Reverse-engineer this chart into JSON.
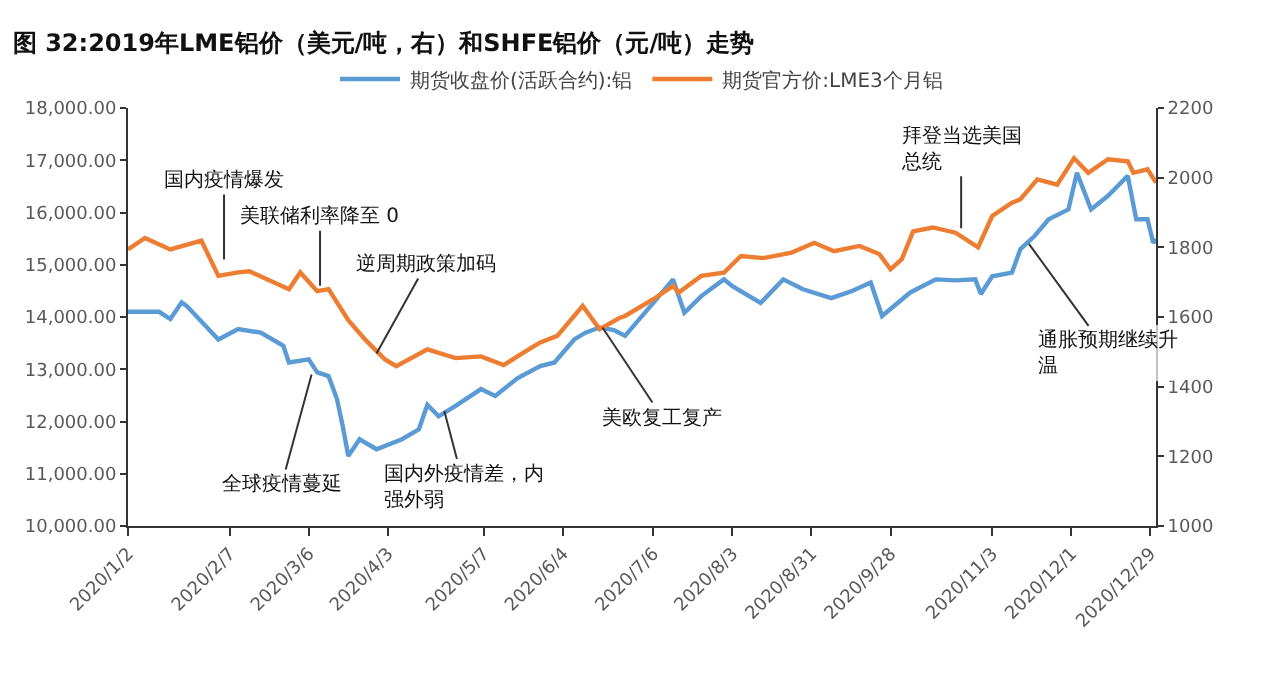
{
  "chart_data": {
    "type": "line",
    "title": "图 32:2019年LME铝价（美元/吨，右）和SHFE铝价（元/吨）走势",
    "series": [
      {
        "name": "期货收盘价(活跃合约):铝",
        "color": "#5b9bd5",
        "x": [
          "2020-01-02",
          "2020-01-13",
          "2020-01-17",
          "2020-01-21",
          "2020-01-23",
          "2020-02-03",
          "2020-02-10",
          "2020-02-18",
          "2020-02-26",
          "2020-02-28",
          "2020-03-06",
          "2020-03-09",
          "2020-03-13",
          "2020-03-16",
          "2020-03-18",
          "2020-03-20",
          "2020-03-24",
          "2020-03-30",
          "2020-04-08",
          "2020-04-14",
          "2020-04-17",
          "2020-04-21",
          "2020-04-27",
          "2020-05-06",
          "2020-05-11",
          "2020-05-19",
          "2020-05-27",
          "2020-06-01",
          "2020-06-08",
          "2020-06-12",
          "2020-06-17",
          "2020-06-22",
          "2020-06-26",
          "2020-07-06",
          "2020-07-13",
          "2020-07-17",
          "2020-07-23",
          "2020-07-31",
          "2020-08-03",
          "2020-08-13",
          "2020-08-21",
          "2020-08-28",
          "2020-09-07",
          "2020-09-14",
          "2020-09-21",
          "2020-09-25",
          "2020-10-05",
          "2020-10-14",
          "2020-10-21",
          "2020-10-28",
          "2020-10-30",
          "2020-11-03",
          "2020-11-10",
          "2020-11-13",
          "2020-11-18",
          "2020-11-23",
          "2020-11-30",
          "2020-12-03",
          "2020-12-08",
          "2020-12-14",
          "2020-12-21",
          "2020-12-24",
          "2020-12-28",
          "2020-12-30",
          "2020-12-31"
        ],
        "values": [
          14100,
          14100,
          13960,
          14280,
          14200,
          13570,
          13770,
          13700,
          13450,
          13130,
          13190,
          12940,
          12870,
          12430,
          11920,
          11340,
          11660,
          11470,
          11660,
          11850,
          12320,
          12100,
          12300,
          12620,
          12490,
          12830,
          13060,
          13130,
          13570,
          13700,
          13800,
          13750,
          13640,
          14270,
          14720,
          14080,
          14400,
          14720,
          14590,
          14270,
          14720,
          14530,
          14360,
          14490,
          14660,
          14020,
          14470,
          14720,
          14700,
          14720,
          14440,
          14780,
          14850,
          15300,
          15550,
          15870,
          16060,
          16760,
          16060,
          16320,
          16700,
          15870,
          15870,
          15420,
          15490
        ]
      },
      {
        "name": "期货官方价:LME3个月铝",
        "color": "#ed7d31",
        "axis": "y2",
        "x": [
          "2020-01-02",
          "2020-01-08",
          "2020-01-17",
          "2020-01-28",
          "2020-02-03",
          "2020-02-10",
          "2020-02-14",
          "2020-02-28",
          "2020-03-03",
          "2020-03-09",
          "2020-03-13",
          "2020-03-20",
          "2020-03-26",
          "2020-04-02",
          "2020-04-06",
          "2020-04-17",
          "2020-04-27",
          "2020-05-06",
          "2020-05-14",
          "2020-05-21",
          "2020-05-27",
          "2020-06-02",
          "2020-06-11",
          "2020-06-17",
          "2020-06-24",
          "2020-06-26",
          "2020-07-06",
          "2020-07-13",
          "2020-07-15",
          "2020-07-23",
          "2020-07-31",
          "2020-08-06",
          "2020-08-14",
          "2020-08-24",
          "2020-09-01",
          "2020-09-08",
          "2020-09-17",
          "2020-09-24",
          "2020-09-28",
          "2020-10-02",
          "2020-10-06",
          "2020-10-13",
          "2020-10-21",
          "2020-10-29",
          "2020-11-03",
          "2020-11-10",
          "2020-11-13",
          "2020-11-19",
          "2020-11-26",
          "2020-12-02",
          "2020-12-07",
          "2020-12-14",
          "2020-12-21",
          "2020-12-23",
          "2020-12-28",
          "2020-12-31"
        ],
        "values": [
          1794,
          1827,
          1794,
          1819,
          1718,
          1728,
          1731,
          1680,
          1728,
          1674,
          1680,
          1591,
          1535,
          1478,
          1459,
          1507,
          1482,
          1487,
          1462,
          1498,
          1527,
          1546,
          1632,
          1565,
          1597,
          1603,
          1651,
          1689,
          1670,
          1718,
          1727,
          1775,
          1769,
          1785,
          1813,
          1789,
          1804,
          1781,
          1737,
          1766,
          1846,
          1857,
          1842,
          1800,
          1890,
          1928,
          1938,
          1995,
          1980,
          2056,
          2014,
          2053,
          2047,
          2014,
          2024,
          1986
        ]
      }
    ],
    "xlim": [
      "2020-01-02",
      "2020-12-31"
    ],
    "xticks": [
      {
        "value": "2020-01-02",
        "label": "2020/1/2"
      },
      {
        "value": "2020-02-07",
        "label": "2020/2/7"
      },
      {
        "value": "2020-03-06",
        "label": "2020/3/6"
      },
      {
        "value": "2020-04-03",
        "label": "2020/4/3"
      },
      {
        "value": "2020-05-07",
        "label": "2020/5/7"
      },
      {
        "value": "2020-06-04",
        "label": "2020/6/4"
      },
      {
        "value": "2020-07-06",
        "label": "2020/7/6"
      },
      {
        "value": "2020-08-03",
        "label": "2020/8/3"
      },
      {
        "value": "2020-08-31",
        "label": "2020/8/31"
      },
      {
        "value": "2020-09-28",
        "label": "2020/9/28"
      },
      {
        "value": "2020-11-03",
        "label": "2020/11/3"
      },
      {
        "value": "2020-12-01",
        "label": "2020/12/1"
      },
      {
        "value": "2020-12-29",
        "label": "2020/12/29"
      }
    ],
    "ylim": [
      10000,
      18000
    ],
    "yticks": [
      {
        "value": 10000,
        "label": "10,000.00"
      },
      {
        "value": 11000,
        "label": "11,000.00"
      },
      {
        "value": 12000,
        "label": "12,000.00"
      },
      {
        "value": 13000,
        "label": "13,000.00"
      },
      {
        "value": 14000,
        "label": "14,000.00"
      },
      {
        "value": 15000,
        "label": "15,000.00"
      },
      {
        "value": 16000,
        "label": "16,000.00"
      },
      {
        "value": 17000,
        "label": "17,000.00"
      },
      {
        "value": 18000,
        "label": "18,000.00"
      }
    ],
    "y2lim": [
      1000,
      2200
    ],
    "y2ticks": [
      1000,
      1200,
      1400,
      1600,
      1800,
      2000,
      2200
    ],
    "annotations": [
      {
        "text": "国内疫情爆发",
        "x": "2020-02-05",
        "y": 15100
      },
      {
        "text": "美联储利率降至 0",
        "x": "2020-03-10",
        "y": 14600
      },
      {
        "text": "逆周期政策加码",
        "x": "2020-03-30",
        "y": 13300
      },
      {
        "text": "全球疫情蔓延",
        "x": "2020-03-07",
        "y": 12900
      },
      {
        "text": "国内外疫情差，内强外弱",
        "x": "2020-04-23",
        "y": 12200
      },
      {
        "text": "美欧复工复产",
        "x": "2020-06-18",
        "y": 13800
      },
      {
        "text": "拜登当选美国总统",
        "x": "2020-10-23",
        "y": 15700
      },
      {
        "text": "通胀预期继续升温",
        "x": "2020-11-16",
        "y": 15400
      }
    ],
    "legend": "top",
    "line_style": "solid",
    "marker": "none"
  }
}
